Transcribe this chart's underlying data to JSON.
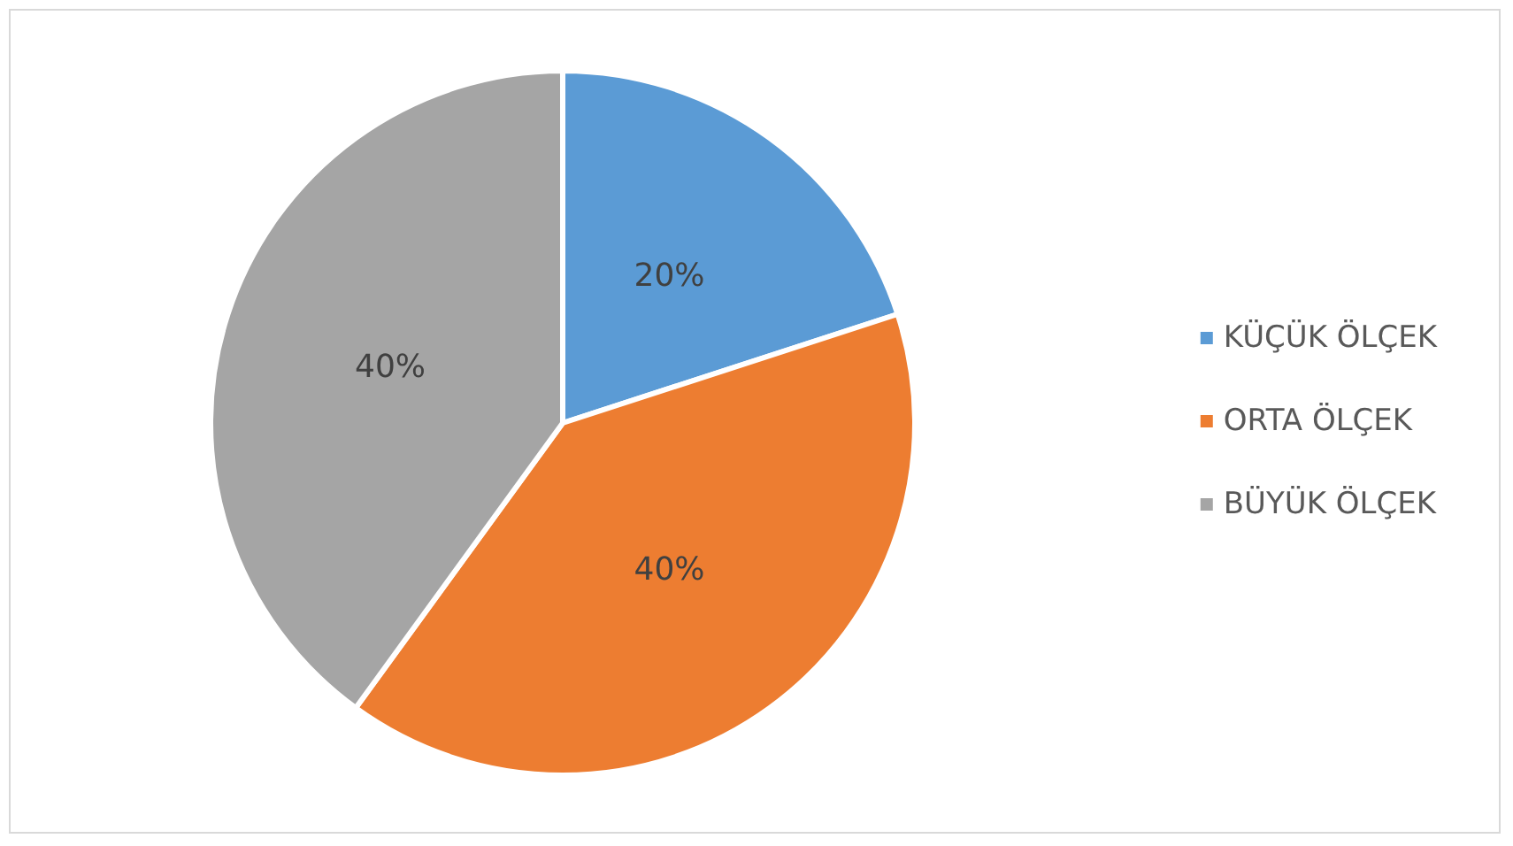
{
  "chart_data": {
    "type": "pie",
    "categories": [
      "KÜÇÜK ÖLÇEK",
      "ORTA ÖLÇEK",
      "BÜYÜK ÖLÇEK"
    ],
    "values": [
      20,
      40,
      40
    ],
    "colors": [
      "#5b9bd5",
      "#ed7d31",
      "#a5a5a5"
    ],
    "value_labels": [
      "20%",
      "40%",
      "40%"
    ],
    "legend": "right"
  }
}
